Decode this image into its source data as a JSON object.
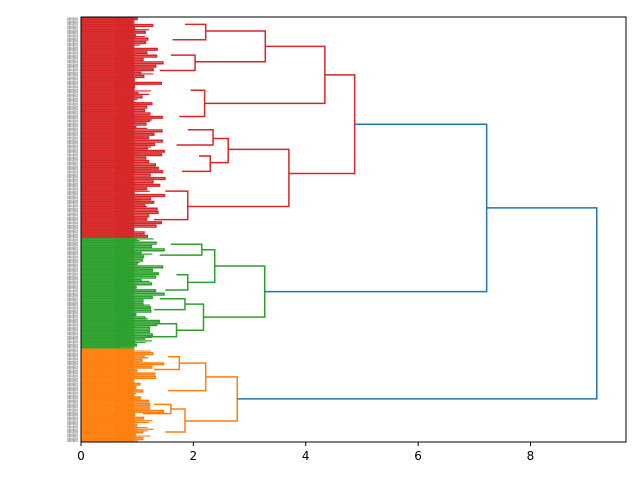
{
  "chart_data": {
    "type": "dendrogram",
    "orientation": "horizontal",
    "title": "",
    "xlabel": "",
    "ylabel": "",
    "xlim": [
      0,
      9.7
    ],
    "x_ticks": [
      0,
      2,
      4,
      6,
      8
    ],
    "x_tick_labels": [
      "0",
      "2",
      "4",
      "6",
      "8"
    ],
    "grid": false,
    "legend": "none",
    "leaf_label_text": "sample",
    "clusters": [
      {
        "color": "#d62728",
        "leaf_count": 130,
        "leaf_range": [
          0,
          130
        ],
        "root_height": 4.87,
        "segments": [
          {
            "h": 4.87,
            "c1": 0.26,
            "h1": 4.34,
            "c2": 0.71,
            "h2": 3.7
          },
          {
            "h": 4.34,
            "c1": 0.13,
            "h1": 3.28,
            "c2": 0.39,
            "h2": 2.2
          },
          {
            "h": 3.28,
            "c1": 0.06,
            "h1": 2.22,
            "c2": 0.2,
            "h2": 2.03
          },
          {
            "h": 2.22,
            "c1": 0.03,
            "h1": 1.85,
            "c2": 0.1,
            "h2": 1.63
          },
          {
            "h": 2.03,
            "c1": 0.17,
            "h1": 1.6,
            "c2": 0.24,
            "h2": 1.4
          },
          {
            "h": 2.2,
            "c1": 0.33,
            "h1": 1.95,
            "c2": 0.45,
            "h2": 1.75
          },
          {
            "h": 3.7,
            "c1": 0.6,
            "h1": 2.62,
            "c2": 0.86,
            "h2": 1.9
          },
          {
            "h": 2.62,
            "c1": 0.55,
            "h1": 2.35,
            "c2": 0.66,
            "h2": 2.3
          },
          {
            "h": 2.35,
            "c1": 0.51,
            "h1": 1.9,
            "c2": 0.58,
            "h2": 1.7
          },
          {
            "h": 2.3,
            "c1": 0.63,
            "h1": 2.1,
            "c2": 0.7,
            "h2": 1.8
          },
          {
            "h": 1.9,
            "c1": 0.79,
            "h1": 1.5,
            "c2": 0.92,
            "h2": 1.3
          }
        ]
      },
      {
        "color": "#2ca02c",
        "leaf_count": 65,
        "leaf_range": [
          130,
          195
        ],
        "root_height": 3.27,
        "segments": [
          {
            "h": 3.27,
            "c1": 0.25,
            "h1": 2.38,
            "c2": 0.72,
            "h2": 2.18
          },
          {
            "h": 2.38,
            "c1": 0.1,
            "h1": 2.15,
            "c2": 0.4,
            "h2": 1.9
          },
          {
            "h": 2.15,
            "c1": 0.05,
            "h1": 1.6,
            "c2": 0.15,
            "h2": 1.4
          },
          {
            "h": 1.9,
            "c1": 0.33,
            "h1": 1.7,
            "c2": 0.47,
            "h2": 1.5
          },
          {
            "h": 2.18,
            "c1": 0.6,
            "h1": 1.85,
            "c2": 0.84,
            "h2": 1.7
          },
          {
            "h": 1.85,
            "c1": 0.55,
            "h1": 1.4,
            "c2": 0.65,
            "h2": 1.3
          },
          {
            "h": 1.7,
            "c1": 0.78,
            "h1": 1.3,
            "c2": 0.9,
            "h2": 1.15
          }
        ]
      },
      {
        "color": "#ff7f0e",
        "leaf_count": 55,
        "leaf_range": [
          195,
          250
        ],
        "root_height": 2.78,
        "segments": [
          {
            "h": 2.78,
            "c1": 0.3,
            "h1": 2.22,
            "c2": 0.78,
            "h2": 1.85
          },
          {
            "h": 2.22,
            "c1": 0.15,
            "h1": 1.75,
            "c2": 0.45,
            "h2": 1.55
          },
          {
            "h": 1.75,
            "c1": 0.08,
            "h1": 1.55,
            "c2": 0.22,
            "h2": 1.3
          },
          {
            "h": 1.85,
            "c1": 0.65,
            "h1": 1.6,
            "c2": 0.9,
            "h2": 1.5
          },
          {
            "h": 1.6,
            "c1": 0.6,
            "h1": 1.3,
            "c2": 0.7,
            "h2": 1.1
          }
        ]
      }
    ],
    "top_links": {
      "color": "#1f77b4",
      "links": [
        {
          "h": 7.22,
          "a": "cluster:0",
          "b": "cluster:1"
        },
        {
          "h": 9.18,
          "a": "link:0",
          "b": "cluster:2"
        }
      ]
    }
  }
}
